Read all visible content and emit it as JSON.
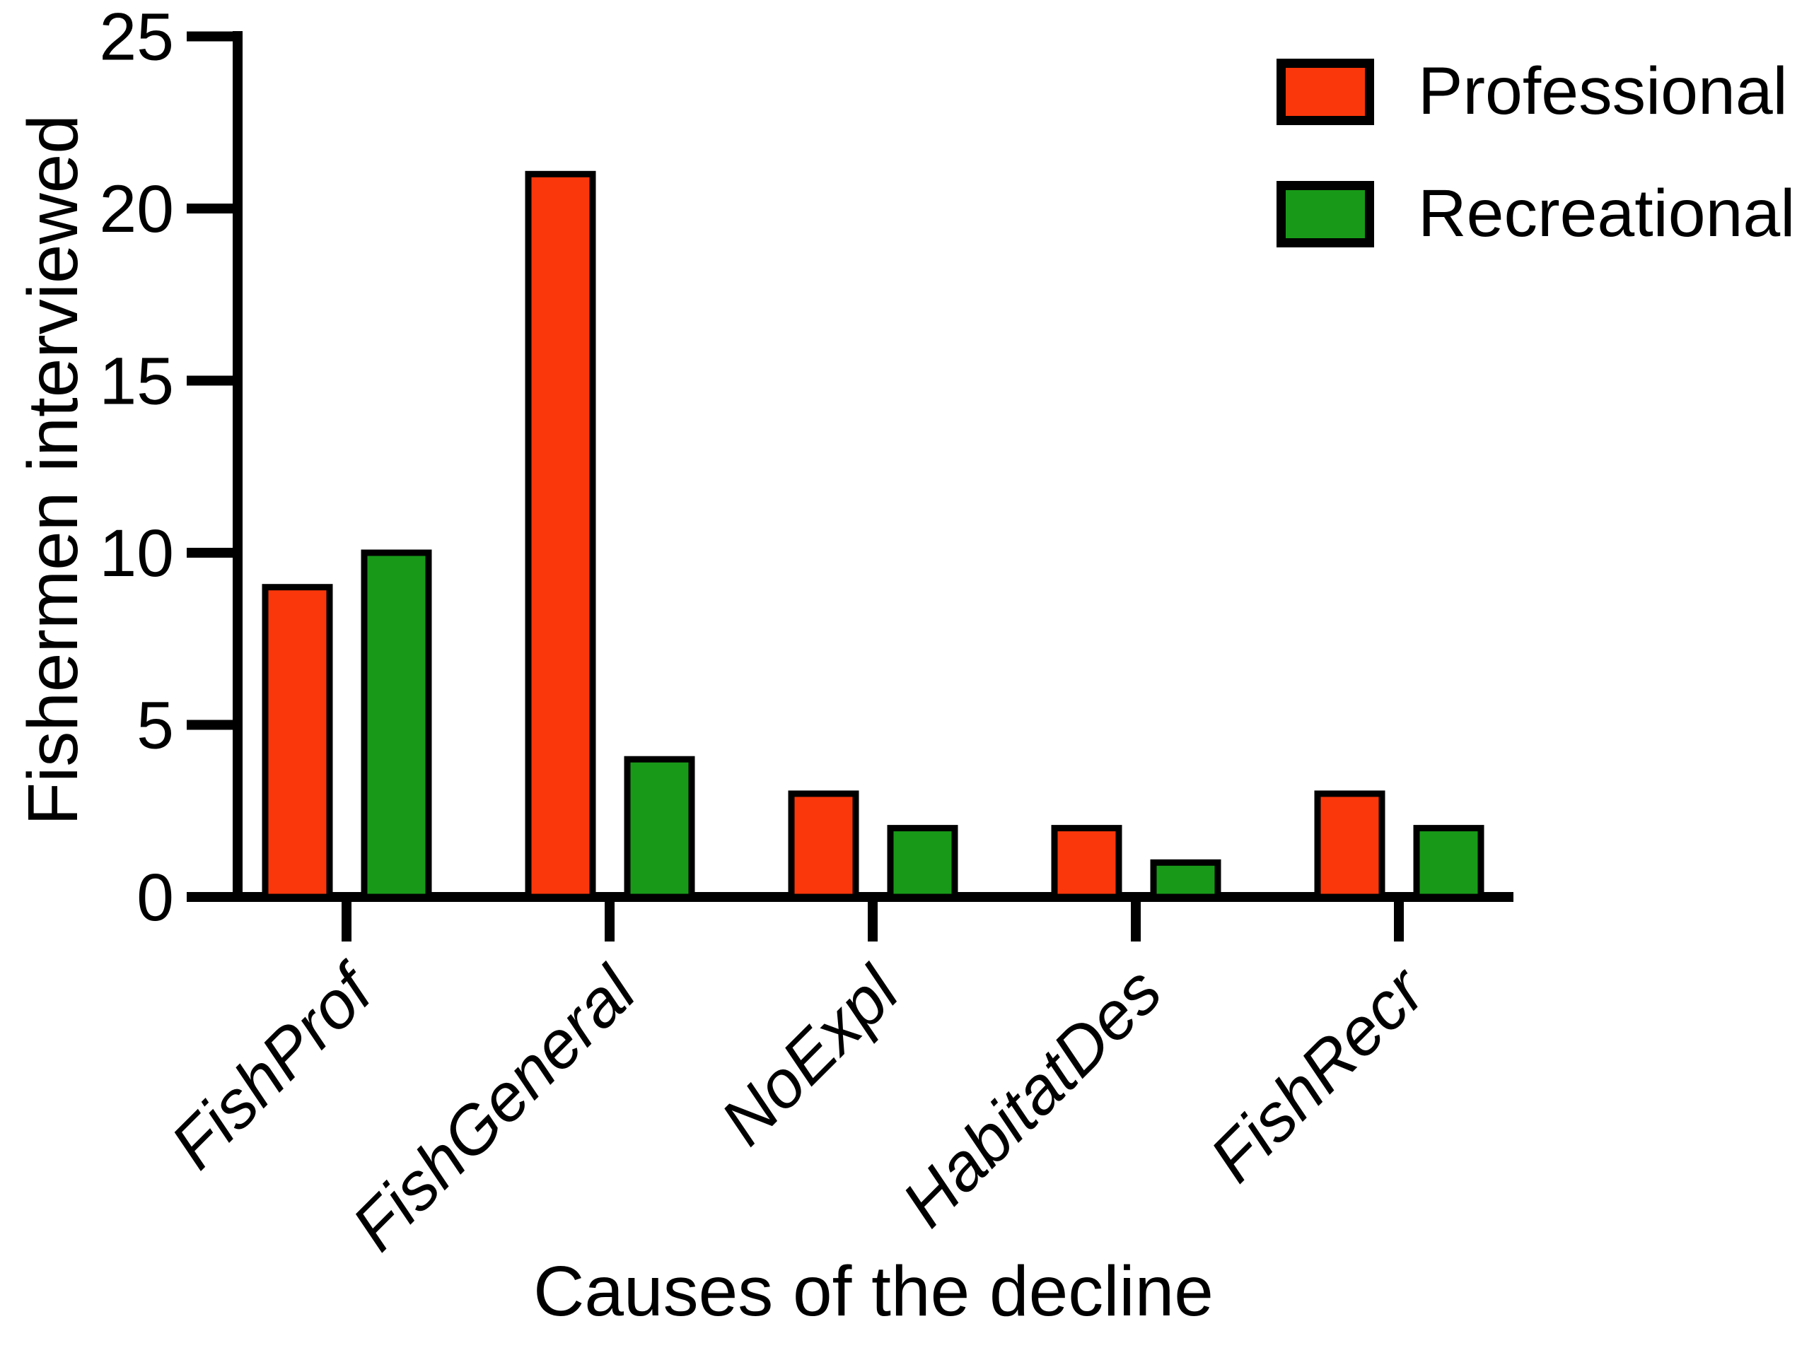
{
  "chart_data": {
    "type": "bar",
    "categories": [
      "FishProf",
      "FishGeneral",
      "NoExpl",
      "HabitatDes",
      "FishRecr"
    ],
    "series": [
      {
        "name": "Professional",
        "color": "#FA370A",
        "values": [
          9,
          21,
          3,
          2,
          3
        ]
      },
      {
        "name": "Recreational",
        "color": "#189A18",
        "values": [
          10,
          4,
          2,
          1,
          2
        ]
      }
    ],
    "title": "",
    "xlabel": "Causes of the decline",
    "ylabel": "Fishermen interviewed",
    "ylim": [
      0,
      25
    ],
    "yticks": [
      0,
      5,
      10,
      15,
      20,
      25
    ],
    "grid": false,
    "legend_position": "top-right",
    "bar_outline_color": "#000000",
    "axis_color": "#000000",
    "background_color": "#FFFFFF",
    "x_tick_label_style": "italic-rotated-45"
  }
}
